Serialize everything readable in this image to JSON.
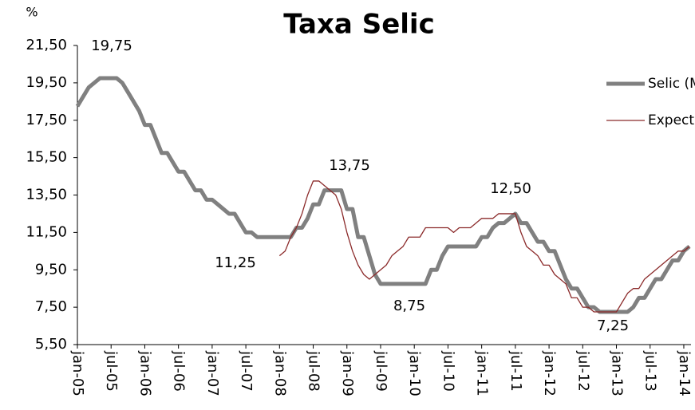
{
  "chart_data": {
    "type": "line",
    "title": "Taxa Selic",
    "y_label": "%",
    "x": [
      "2005-01",
      "2005-02",
      "2005-03",
      "2005-04",
      "2005-05",
      "2005-06",
      "2005-07",
      "2005-08",
      "2005-09",
      "2005-10",
      "2005-11",
      "2005-12",
      "2006-01",
      "2006-02",
      "2006-03",
      "2006-04",
      "2006-05",
      "2006-06",
      "2006-07",
      "2006-08",
      "2006-09",
      "2006-10",
      "2006-11",
      "2006-12",
      "2007-01",
      "2007-02",
      "2007-03",
      "2007-04",
      "2007-05",
      "2007-06",
      "2007-07",
      "2007-08",
      "2007-09",
      "2007-10",
      "2007-11",
      "2007-12",
      "2008-01",
      "2008-02",
      "2008-03",
      "2008-04",
      "2008-05",
      "2008-06",
      "2008-07",
      "2008-08",
      "2008-09",
      "2008-10",
      "2008-11",
      "2008-12",
      "2009-01",
      "2009-02",
      "2009-03",
      "2009-04",
      "2009-05",
      "2009-06",
      "2009-07",
      "2009-08",
      "2009-09",
      "2009-10",
      "2009-11",
      "2009-12",
      "2010-01",
      "2010-02",
      "2010-03",
      "2010-04",
      "2010-05",
      "2010-06",
      "2010-07",
      "2010-08",
      "2010-09",
      "2010-10",
      "2010-11",
      "2010-12",
      "2011-01",
      "2011-02",
      "2011-03",
      "2011-04",
      "2011-05",
      "2011-06",
      "2011-07",
      "2011-08",
      "2011-09",
      "2011-10",
      "2011-11",
      "2011-12",
      "2012-01",
      "2012-02",
      "2012-03",
      "2012-04",
      "2012-05",
      "2012-06",
      "2012-07",
      "2012-08",
      "2012-09",
      "2012-10",
      "2012-11",
      "2012-12",
      "2013-01",
      "2013-02",
      "2013-03",
      "2013-04",
      "2013-05",
      "2013-06",
      "2013-07",
      "2013-08",
      "2013-09",
      "2013-10",
      "2013-11",
      "2013-12",
      "2014-01",
      "2014-02"
    ],
    "series": [
      {
        "name": "Selic (Meta)",
        "color": "#808080",
        "values": [
          18.25,
          18.75,
          19.25,
          19.5,
          19.75,
          19.75,
          19.75,
          19.75,
          19.5,
          19,
          18.5,
          18,
          17.25,
          17.25,
          16.5,
          15.75,
          15.75,
          15.25,
          14.75,
          14.75,
          14.25,
          13.75,
          13.75,
          13.25,
          13.25,
          13,
          12.75,
          12.5,
          12.5,
          12,
          11.5,
          11.5,
          11.25,
          11.25,
          11.25,
          11.25,
          11.25,
          11.25,
          11.25,
          11.75,
          11.75,
          12.25,
          13,
          13,
          13.75,
          13.75,
          13.75,
          13.75,
          12.75,
          12.75,
          11.25,
          11.25,
          10.25,
          9.25,
          8.75,
          8.75,
          8.75,
          8.75,
          8.75,
          8.75,
          8.75,
          8.75,
          8.75,
          9.5,
          9.5,
          10.25,
          10.75,
          10.75,
          10.75,
          10.75,
          10.75,
          10.75,
          11.25,
          11.25,
          11.75,
          12,
          12,
          12.25,
          12.5,
          12,
          12,
          11.5,
          11,
          11,
          10.5,
          10.5,
          9.75,
          9,
          8.5,
          8.5,
          8,
          7.5,
          7.5,
          7.25,
          7.25,
          7.25,
          7.25,
          7.25,
          7.25,
          7.5,
          8,
          8,
          8.5,
          9,
          9,
          9.5,
          10,
          10,
          10.5,
          10.75
        ]
      },
      {
        "name": "Expectativa",
        "color": "#8b2a2a",
        "values": [
          null,
          null,
          null,
          null,
          null,
          null,
          null,
          null,
          null,
          null,
          null,
          null,
          null,
          null,
          null,
          null,
          null,
          null,
          null,
          null,
          null,
          null,
          null,
          null,
          null,
          null,
          null,
          null,
          null,
          null,
          null,
          null,
          null,
          null,
          null,
          null,
          10.25,
          10.5,
          11.25,
          11.75,
          12.5,
          13.5,
          14.25,
          14.25,
          14,
          13.75,
          13.5,
          12.75,
          11.5,
          10.5,
          9.75,
          9.25,
          9,
          9.25,
          9.5,
          9.75,
          10.25,
          10.5,
          10.75,
          11.25,
          11.25,
          11.25,
          11.75,
          11.75,
          11.75,
          11.75,
          11.75,
          11.5,
          11.75,
          11.75,
          11.75,
          12,
          12.25,
          12.25,
          12.25,
          12.5,
          12.5,
          12.5,
          12.5,
          11.5,
          10.75,
          10.5,
          10.25,
          9.75,
          9.75,
          9.25,
          9,
          8.75,
          8,
          8,
          7.5,
          7.5,
          7.25,
          7.25,
          7.25,
          7.25,
          7.25,
          7.75,
          8.25,
          8.5,
          8.5,
          9,
          9.25,
          9.5,
          9.75,
          10,
          10.25,
          10.5,
          10.5,
          10.75
        ]
      }
    ],
    "xlim": [
      "2005-01",
      "2014-02"
    ],
    "xticks": [
      {
        "value": "2005-01",
        "label": "jan-05"
      },
      {
        "value": "2005-07",
        "label": "jul-05"
      },
      {
        "value": "2006-01",
        "label": "jan-06"
      },
      {
        "value": "2006-07",
        "label": "jul-06"
      },
      {
        "value": "2007-01",
        "label": "jan-07"
      },
      {
        "value": "2007-07",
        "label": "jul-07"
      },
      {
        "value": "2008-01",
        "label": "jan-08"
      },
      {
        "value": "2008-07",
        "label": "jul-08"
      },
      {
        "value": "2009-01",
        "label": "jan-09"
      },
      {
        "value": "2009-07",
        "label": "jul-09"
      },
      {
        "value": "2010-01",
        "label": "jan-10"
      },
      {
        "value": "2010-07",
        "label": "jul-10"
      },
      {
        "value": "2011-01",
        "label": "jan-11"
      },
      {
        "value": "2011-07",
        "label": "jul-11"
      },
      {
        "value": "2012-01",
        "label": "jan-12"
      },
      {
        "value": "2012-07",
        "label": "jul-12"
      },
      {
        "value": "2013-01",
        "label": "jan-13"
      },
      {
        "value": "2013-07",
        "label": "jul-13"
      },
      {
        "value": "2014-01",
        "label": "jan-14"
      }
    ],
    "ylim": [
      5.5,
      21.5
    ],
    "yticks": [
      {
        "value": 5.5,
        "label": "5,50"
      },
      {
        "value": 7.5,
        "label": "7,50"
      },
      {
        "value": 9.5,
        "label": "9,50"
      },
      {
        "value": 11.5,
        "label": "11,50"
      },
      {
        "value": 13.5,
        "label": "13,50"
      },
      {
        "value": 15.5,
        "label": "15,50"
      },
      {
        "value": 17.5,
        "label": "17,50"
      },
      {
        "value": 19.5,
        "label": "19,50"
      },
      {
        "value": 21.5,
        "label": "21,50"
      }
    ],
    "grid": false,
    "legend": "upper right",
    "annotations": [
      "19,75",
      "13,75",
      "11,25",
      "12,50",
      "8,75",
      "7,25"
    ]
  }
}
